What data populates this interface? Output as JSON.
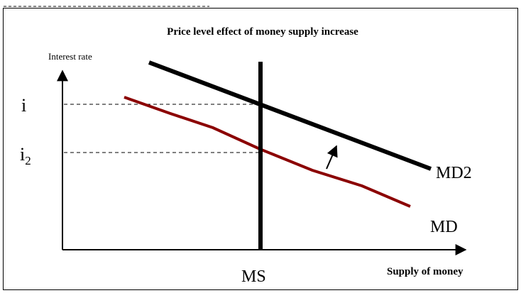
{
  "title": "Price level effect of money supply increase",
  "y_axis_label": "Interest rate",
  "x_axis_label": "Supply of money",
  "levels": {
    "i": "i",
    "i2": {
      "base": "i",
      "sub": "2"
    }
  },
  "curves": {
    "md2": "MD2",
    "md": "MD",
    "ms": "MS"
  }
}
